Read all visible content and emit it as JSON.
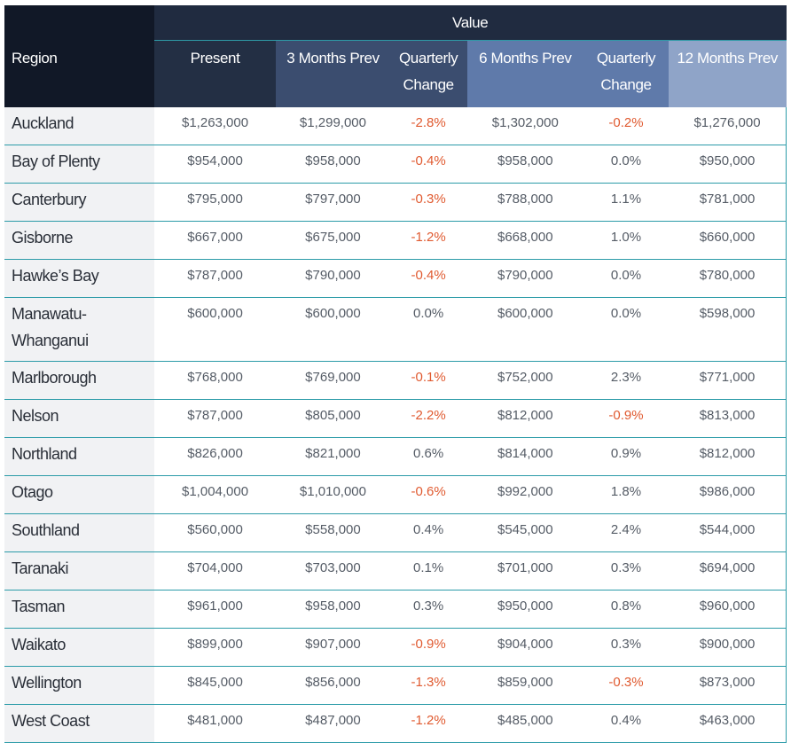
{
  "header": {
    "value_label": "Value",
    "region": "Region",
    "present": "Present",
    "months3": "3 Months Prev",
    "quarterly1": "Quarterly Change",
    "months6": "6 Months Prev",
    "quarterly2": "Quarterly Change",
    "months12": "12 Months Prev"
  },
  "colors": {
    "negative": "#e05a30",
    "border": "#2b9ba8",
    "header_dark": "#111827",
    "header_mid": "#3b4d6f",
    "header_light": "#5f7aaa",
    "header_lightest": "#8fa4c8"
  },
  "rows": [
    {
      "region": "Auckland",
      "present": "$1,263,000",
      "m3": "$1,299,000",
      "qc1": "-2.8%",
      "m6": "$1,302,000",
      "qc2": "-0.2%",
      "m12": "$1,276,000"
    },
    {
      "region": "Bay of Plenty",
      "present": "$954,000",
      "m3": "$958,000",
      "qc1": "-0.4%",
      "m6": "$958,000",
      "qc2": "0.0%",
      "m12": "$950,000"
    },
    {
      "region": "Canterbury",
      "present": "$795,000",
      "m3": "$797,000",
      "qc1": "-0.3%",
      "m6": "$788,000",
      "qc2": "1.1%",
      "m12": "$781,000"
    },
    {
      "region": "Gisborne",
      "present": "$667,000",
      "m3": "$675,000",
      "qc1": "-1.2%",
      "m6": "$668,000",
      "qc2": "1.0%",
      "m12": "$660,000"
    },
    {
      "region": "Hawke’s Bay",
      "present": "$787,000",
      "m3": "$790,000",
      "qc1": "-0.4%",
      "m6": "$790,000",
      "qc2": "0.0%",
      "m12": "$780,000"
    },
    {
      "region": "Manawatu-Whanganui",
      "present": "$600,000",
      "m3": "$600,000",
      "qc1": "0.0%",
      "m6": "$600,000",
      "qc2": "0.0%",
      "m12": "$598,000"
    },
    {
      "region": "Marlborough",
      "present": "$768,000",
      "m3": "$769,000",
      "qc1": "-0.1%",
      "m6": "$752,000",
      "qc2": "2.3%",
      "m12": "$771,000"
    },
    {
      "region": "Nelson",
      "present": "$787,000",
      "m3": "$805,000",
      "qc1": "-2.2%",
      "m6": "$812,000",
      "qc2": "-0.9%",
      "m12": "$813,000"
    },
    {
      "region": "Northland",
      "present": "$826,000",
      "m3": "$821,000",
      "qc1": "0.6%",
      "m6": "$814,000",
      "qc2": "0.9%",
      "m12": "$812,000"
    },
    {
      "region": "Otago",
      "present": "$1,004,000",
      "m3": "$1,010,000",
      "qc1": "-0.6%",
      "m6": "$992,000",
      "qc2": "1.8%",
      "m12": "$986,000"
    },
    {
      "region": "Southland",
      "present": "$560,000",
      "m3": "$558,000",
      "qc1": "0.4%",
      "m6": "$545,000",
      "qc2": "2.4%",
      "m12": "$544,000"
    },
    {
      "region": "Taranaki",
      "present": "$704,000",
      "m3": "$703,000",
      "qc1": "0.1%",
      "m6": "$701,000",
      "qc2": "0.3%",
      "m12": "$694,000"
    },
    {
      "region": "Tasman",
      "present": "$961,000",
      "m3": "$958,000",
      "qc1": "0.3%",
      "m6": "$950,000",
      "qc2": "0.8%",
      "m12": "$960,000"
    },
    {
      "region": "Waikato",
      "present": "$899,000",
      "m3": "$907,000",
      "qc1": "-0.9%",
      "m6": "$904,000",
      "qc2": "0.3%",
      "m12": "$900,000"
    },
    {
      "region": "Wellington",
      "present": "$845,000",
      "m3": "$856,000",
      "qc1": "-1.3%",
      "m6": "$859,000",
      "qc2": "-0.3%",
      "m12": "$873,000"
    },
    {
      "region": "West Coast",
      "present": "$481,000",
      "m3": "$487,000",
      "qc1": "-1.2%",
      "m6": "$485,000",
      "qc2": "0.4%",
      "m12": "$463,000"
    }
  ]
}
